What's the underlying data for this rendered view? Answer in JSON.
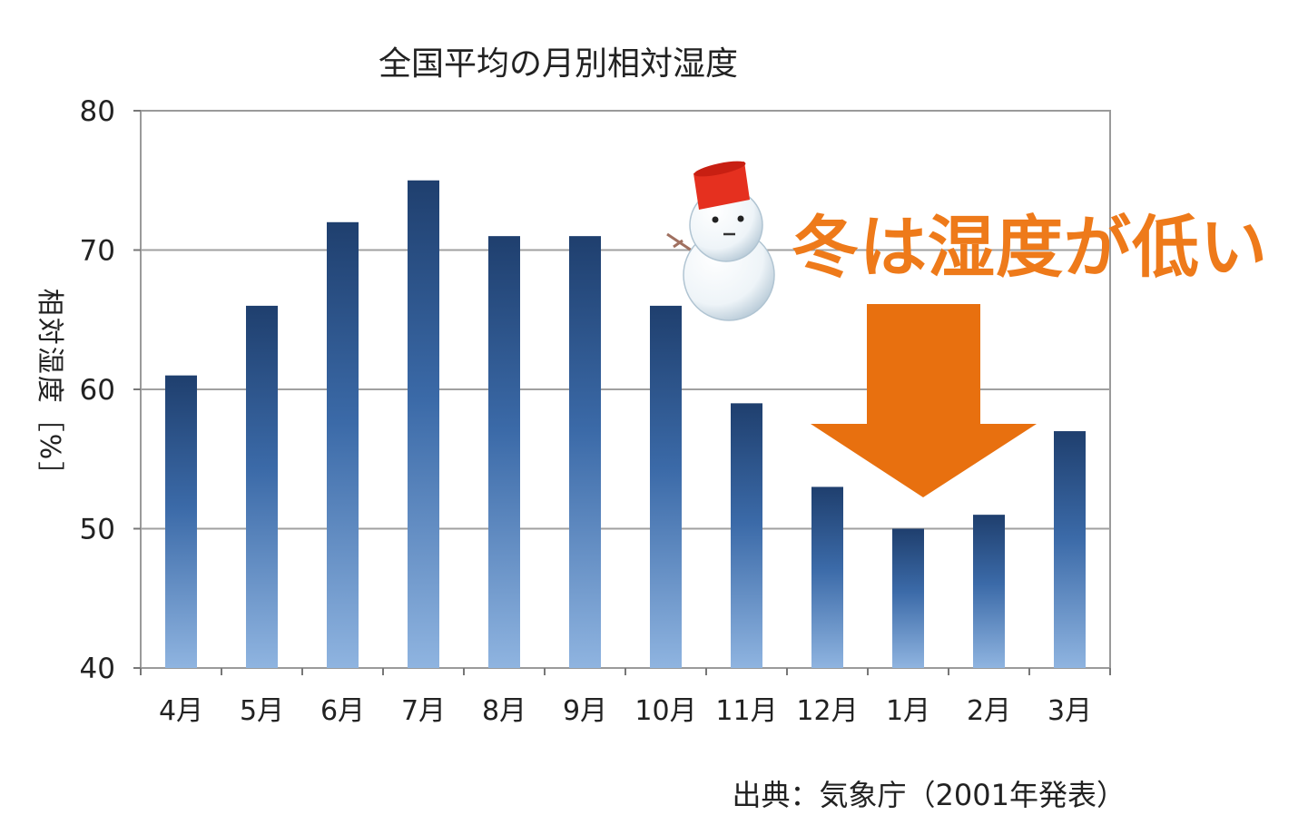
{
  "chart_data": {
    "type": "bar",
    "title": "全国平均の月別相対湿度",
    "ylabel": "相対湿度［%］",
    "xlabel": "",
    "categories": [
      "4月",
      "5月",
      "6月",
      "7月",
      "8月",
      "9月",
      "10月",
      "11月",
      "12月",
      "1月",
      "2月",
      "3月"
    ],
    "values": [
      61,
      66,
      72,
      75,
      71,
      71,
      66,
      59,
      53,
      50,
      51,
      57
    ],
    "ylim": [
      40,
      80
    ],
    "yticks": [
      40,
      50,
      60,
      70,
      80
    ],
    "grid": true,
    "source": "出典：気象庁（2001年発表）",
    "annotation": "冬は湿度が低い"
  },
  "colors": {
    "bar_top": "#1f3f6e",
    "bar_mid": "#3b6aa8",
    "bar_bottom": "#8fb4e0",
    "callout": "#ee7a1a",
    "arrow": "#e8700f",
    "grid": "#a0a0a0"
  },
  "icons": [
    "snowman-icon",
    "down-arrow-icon"
  ]
}
